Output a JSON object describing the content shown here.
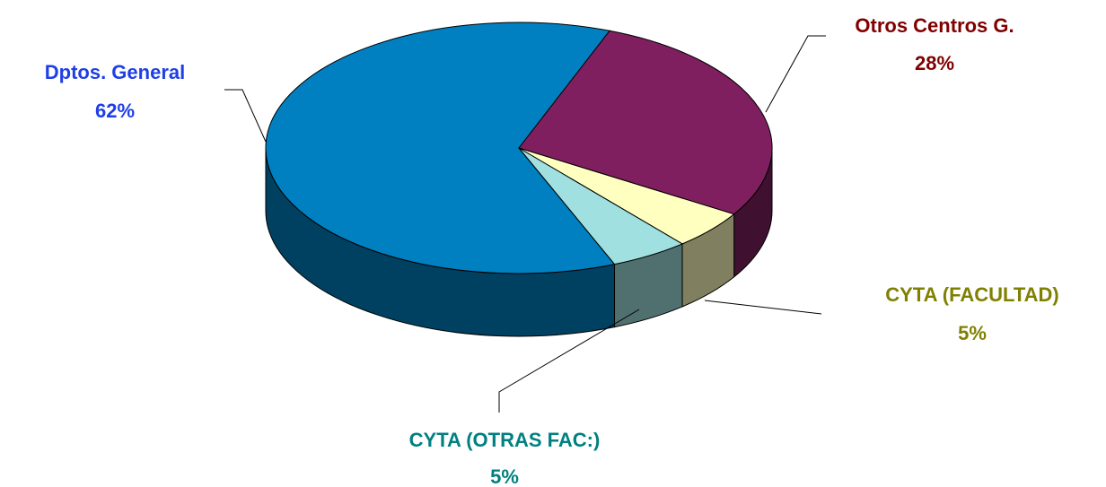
{
  "chart_data": {
    "type": "pie",
    "categories": [
      "Dptos. General",
      "Otros Centros G.",
      "CYTA (FACULTAD)",
      "CYTA (OTRAS FAC:)"
    ],
    "values": [
      62,
      28,
      5,
      5
    ],
    "value_labels": [
      "62%",
      "28%",
      "5%",
      "5%"
    ],
    "colors": [
      "#0080c0",
      "#7f1f5f",
      "#ffffc0",
      "#a0e0e0"
    ],
    "label_colors": [
      "#1f3fe6",
      "#800000",
      "#808000",
      "#008080"
    ],
    "three_d": true
  }
}
